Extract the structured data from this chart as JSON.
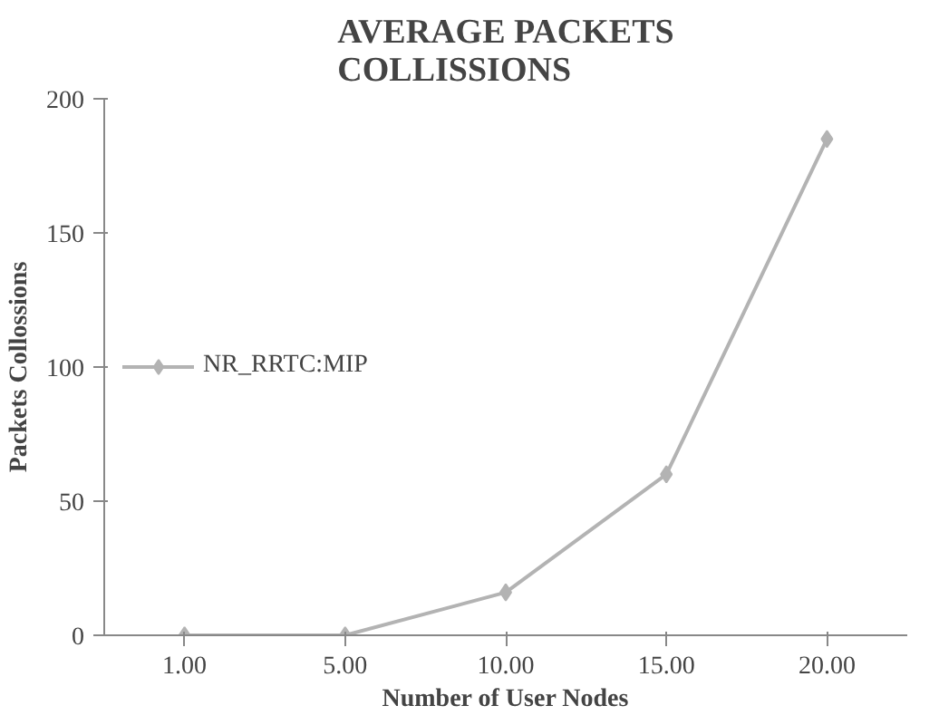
{
  "chart_data": {
    "type": "line",
    "title": "AVERAGE PACKETS COLLISSIONS",
    "xlabel": "Number of User Nodes",
    "ylabel": "Packets Collossions",
    "categories": [
      "1.00",
      "5.00",
      "10.00",
      "15.00",
      "20.00"
    ],
    "series": [
      {
        "name": "NR_RRTC:MIP",
        "color": "#b3b3b3",
        "values": [
          0,
          0,
          16,
          60,
          185
        ]
      }
    ],
    "ylim": [
      0,
      200
    ],
    "yticks": [
      0,
      50,
      100,
      150,
      200
    ],
    "grid": false,
    "legend": "left",
    "marker": "diamond",
    "line_style": "solid"
  }
}
